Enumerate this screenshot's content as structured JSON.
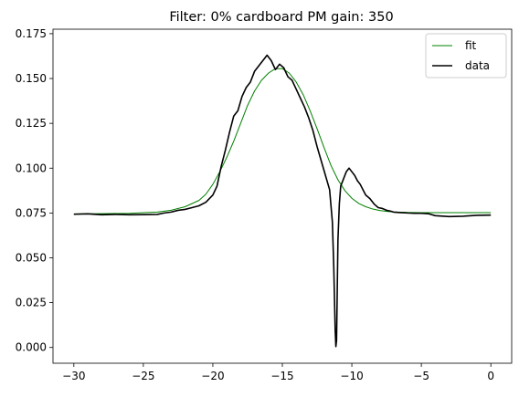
{
  "chart_data": {
    "type": "line",
    "title": "Filter: 0% cardboard PM gain: 350",
    "xlabel": "",
    "ylabel": "",
    "xlim": [
      -31.5,
      1.5
    ],
    "ylim": [
      -0.0088,
      0.1775
    ],
    "grid": false,
    "legend": "top-right",
    "x_ticks": [
      -30,
      -25,
      -20,
      -15,
      -10,
      -5,
      0
    ],
    "x_tick_labels": [
      "−30",
      "−25",
      "−20",
      "−15",
      "−10",
      "−5",
      "0"
    ],
    "y_ticks": [
      0.0,
      0.025,
      0.05,
      0.075,
      0.1,
      0.125,
      0.15,
      0.175
    ],
    "y_tick_labels": [
      "0.000",
      "0.025",
      "0.050",
      "0.075",
      "0.100",
      "0.125",
      "0.150",
      "0.175"
    ],
    "series": [
      {
        "name": "fit",
        "color": "#008000",
        "line_width": 1,
        "x": [
          -30,
          -28,
          -26,
          -24,
          -23,
          -22,
          -21,
          -20.5,
          -20,
          -19.5,
          -19,
          -18.5,
          -18,
          -17.5,
          -17,
          -16.5,
          -16,
          -15.5,
          -15,
          -14.5,
          -14,
          -13.5,
          -13,
          -12.5,
          -12,
          -11.5,
          -11,
          -10.5,
          -10,
          -9.5,
          -9,
          -8.5,
          -8,
          -7.5,
          -7,
          -6,
          -5,
          -4,
          -2,
          0
        ],
        "y": [
          0.0745,
          0.0746,
          0.0748,
          0.0755,
          0.0765,
          0.0785,
          0.082,
          0.0855,
          0.091,
          0.098,
          0.106,
          0.115,
          0.125,
          0.135,
          0.143,
          0.149,
          0.153,
          0.1555,
          0.1555,
          0.153,
          0.148,
          0.141,
          0.132,
          0.122,
          0.1115,
          0.1015,
          0.0935,
          0.0875,
          0.0832,
          0.0803,
          0.0785,
          0.0772,
          0.0764,
          0.0759,
          0.0756,
          0.0753,
          0.0752,
          0.0752,
          0.0752,
          0.0752
        ]
      },
      {
        "name": "data",
        "color": "#000000",
        "line_width": 1.6,
        "x": [
          -30,
          -29,
          -28,
          -27,
          -26,
          -25,
          -24,
          -23.5,
          -23,
          -22.5,
          -22,
          -21.5,
          -21,
          -20.5,
          -20,
          -19.7,
          -19.4,
          -19.1,
          -18.8,
          -18.5,
          -18.2,
          -17.9,
          -17.6,
          -17.3,
          -17,
          -16.7,
          -16.4,
          -16.1,
          -15.8,
          -15.5,
          -15.2,
          -14.9,
          -14.6,
          -14.3,
          -14,
          -13.7,
          -13.4,
          -13.1,
          -12.8,
          -12.5,
          -12.2,
          -11.9,
          -11.6,
          -11.4,
          -11.3,
          -11.2,
          -11.15,
          -11.1,
          -11.05,
          -11.0,
          -10.9,
          -10.8,
          -10.6,
          -10.4,
          -10.2,
          -10.0,
          -9.8,
          -9.6,
          -9.4,
          -9.2,
          -9.0,
          -8.7,
          -8.4,
          -8.1,
          -7.8,
          -7.5,
          -7.2,
          -7,
          -6.5,
          -6,
          -5.5,
          -5,
          -4.5,
          -4,
          -3,
          -2,
          -1,
          0
        ],
        "y": [
          0.0743,
          0.0745,
          0.074,
          0.0742,
          0.074,
          0.0741,
          0.0742,
          0.075,
          0.0755,
          0.0765,
          0.077,
          0.078,
          0.079,
          0.081,
          0.085,
          0.09,
          0.101,
          0.11,
          0.12,
          0.129,
          0.132,
          0.14,
          0.145,
          0.148,
          0.154,
          0.157,
          0.16,
          0.163,
          0.16,
          0.155,
          0.158,
          0.156,
          0.151,
          0.149,
          0.144,
          0.139,
          0.134,
          0.128,
          0.121,
          0.112,
          0.104,
          0.096,
          0.088,
          0.07,
          0.045,
          0.01,
          0.0005,
          0.004,
          0.032,
          0.06,
          0.08,
          0.09,
          0.094,
          0.098,
          0.1,
          0.098,
          0.096,
          0.093,
          0.091,
          0.088,
          0.085,
          0.083,
          0.08,
          0.078,
          0.0775,
          0.0765,
          0.076,
          0.0755,
          0.0752,
          0.075,
          0.0748,
          0.0748,
          0.0746,
          0.0735,
          0.073,
          0.0732,
          0.0737,
          0.0738
        ]
      }
    ]
  }
}
